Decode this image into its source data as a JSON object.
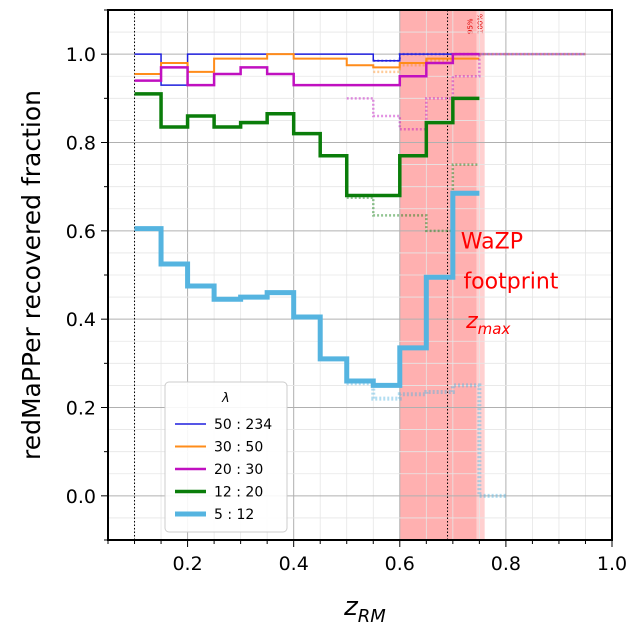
{
  "chart_data": {
    "type": "line",
    "step": true,
    "xlabel": "z",
    "xlabel_sub": "RM",
    "ylabel": "redMaPPer recovered fraction",
    "xlim": [
      0.05,
      1.0
    ],
    "ylim": [
      -0.1,
      1.1
    ],
    "xticks": [
      0.2,
      0.4,
      0.6,
      0.8,
      1.0
    ],
    "xtick_labels": [
      "0.2",
      "0.4",
      "0.6",
      "0.8",
      "1.0"
    ],
    "yticks": [
      0.0,
      0.2,
      0.4,
      0.6,
      0.8,
      1.0
    ],
    "ytick_labels": [
      "0.0",
      "0.2",
      "0.4",
      "0.6",
      "0.8",
      "1.0"
    ],
    "grid": true,
    "legend": {
      "title": "λ",
      "placement": "bottom-left"
    },
    "vlines": [
      0.1,
      0.69
    ],
    "shaded_regions": [
      {
        "x": [
          0.6,
          0.745
        ],
        "color": "#ffb0b0",
        "label": "95%"
      },
      {
        "x": [
          0.745,
          0.76
        ],
        "color": "#ffd0d0",
        "label": "100%"
      }
    ],
    "annotations": [
      {
        "text": "WaZP",
        "x": 0.715,
        "y": 0.56,
        "color": "#ff0000"
      },
      {
        "text": "footprint",
        "x": 0.72,
        "y": 0.47,
        "color": "#ff0000"
      },
      {
        "text": "z",
        "sub": "max",
        "x": 0.725,
        "y": 0.38,
        "color": "#ff0000"
      }
    ],
    "edges": [
      0.1,
      0.15,
      0.2,
      0.25,
      0.3,
      0.35,
      0.4,
      0.45,
      0.5,
      0.55,
      0.6,
      0.65,
      0.7,
      0.75
    ],
    "series": [
      {
        "name": "50 : 234",
        "color": "#1f1fdd",
        "width": 1.5,
        "values": [
          1.0,
          0.93,
          1.0,
          1.0,
          1.0,
          1.0,
          1.0,
          1.0,
          1.0,
          0.985,
          1.0,
          1.0,
          1.0
        ],
        "dotted": {
          "edges": [
            0.55,
            0.6,
            0.65,
            0.7,
            0.75,
            0.8,
            0.85,
            0.9,
            0.95
          ],
          "values": [
            0.985,
            1.0,
            1.0,
            1.0,
            1.0,
            1.0,
            1.0,
            1.0
          ]
        }
      },
      {
        "name": "30 : 50",
        "color": "#ff8c1a",
        "width": 2,
        "values": [
          0.955,
          0.98,
          0.96,
          0.99,
          0.99,
          1.0,
          0.99,
          0.99,
          0.975,
          0.97,
          0.98,
          0.99,
          0.99
        ],
        "dotted": {
          "edges": [
            0.55,
            0.6,
            0.65,
            0.7,
            0.75,
            0.8,
            0.85,
            0.9,
            0.95
          ],
          "values": [
            0.96,
            0.975,
            0.985,
            1.0,
            1.0,
            1.0,
            1.0,
            1.0
          ]
        }
      },
      {
        "name": "20 : 30",
        "color": "#c010c0",
        "width": 2.5,
        "values": [
          0.94,
          0.97,
          0.93,
          0.955,
          0.97,
          0.955,
          0.93,
          0.93,
          0.93,
          0.93,
          0.95,
          0.98,
          1.0
        ],
        "dotted": {
          "edges": [
            0.5,
            0.55,
            0.6,
            0.65,
            0.7,
            0.75,
            0.8,
            0.85,
            0.9,
            0.95
          ],
          "values": [
            0.9,
            0.86,
            0.83,
            0.9,
            0.95,
            1.0,
            1.0,
            1.0,
            1.0
          ]
        }
      },
      {
        "name": "12 : 20",
        "color": "#0a7d0a",
        "width": 3.5,
        "values": [
          0.91,
          0.835,
          0.86,
          0.835,
          0.845,
          0.865,
          0.82,
          0.77,
          0.68,
          0.68,
          0.77,
          0.845,
          0.9
        ],
        "dotted": {
          "edges": [
            0.5,
            0.55,
            0.6,
            0.65,
            0.7,
            0.75
          ],
          "values": [
            0.675,
            0.635,
            0.635,
            0.6,
            0.75
          ]
        }
      },
      {
        "name": " 5 : 12",
        "color": "#55b4e0",
        "width": 5,
        "values": [
          0.605,
          0.525,
          0.475,
          0.445,
          0.45,
          0.46,
          0.405,
          0.31,
          0.26,
          0.25,
          0.335,
          0.495,
          0.685
        ],
        "dotted": {
          "edges": [
            0.5,
            0.55,
            0.6,
            0.65,
            0.7,
            0.75,
            0.8
          ],
          "values": [
            0.255,
            0.22,
            0.23,
            0.235,
            0.25,
            0.0
          ]
        }
      }
    ]
  }
}
